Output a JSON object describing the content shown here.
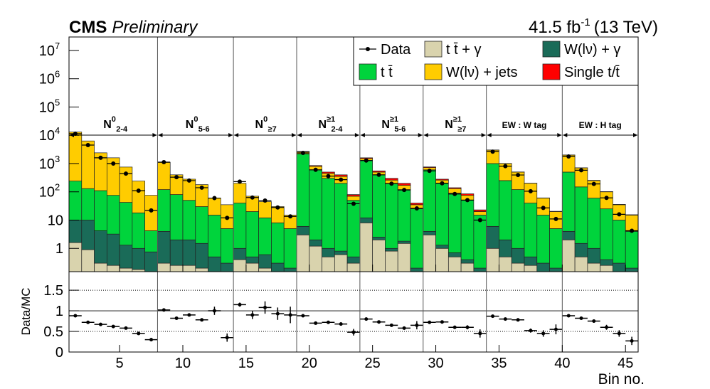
{
  "chart_data": {
    "type": "stacked-histogram",
    "experiment": "CMS",
    "status": "Preliminary",
    "lumi": "41.5 fb",
    "lumi_exponent": "-1",
    "energy": "(13 TeV)",
    "xlabel": "Bin no.",
    "bins": [
      1,
      2,
      3,
      4,
      5,
      6,
      7,
      8,
      9,
      10,
      11,
      12,
      13,
      14,
      15,
      16,
      17,
      18,
      19,
      20,
      21,
      22,
      23,
      24,
      25,
      26,
      27,
      28,
      29,
      30,
      31,
      32,
      33,
      34,
      35,
      36,
      37,
      38,
      39,
      40,
      41,
      42,
      43,
      44,
      45,
      46
    ],
    "xlim": [
      1,
      46
    ],
    "xticks": [
      5,
      10,
      15,
      20,
      25,
      30,
      35,
      40,
      45
    ],
    "log_y": true,
    "ylim": [
      0.15,
      30000000
    ],
    "yticks": [
      1,
      10,
      {
        "value": 100,
        "label": "10",
        "exponent": "2"
      },
      {
        "value": 1000,
        "label": "10",
        "exponent": "3"
      },
      {
        "value": 10000,
        "label": "10",
        "exponent": "4"
      },
      {
        "value": 100000,
        "label": "10",
        "exponent": "5"
      },
      {
        "value": 1000000,
        "label": "10",
        "exponent": "6"
      },
      {
        "value": 10000000,
        "label": "10",
        "exponent": "7"
      }
    ],
    "separators": [
      8,
      14,
      19,
      24,
      29,
      34,
      40
    ],
    "regions": [
      {
        "label": "N",
        "sup": "0",
        "sub": "2-4",
        "xrange": [
          1,
          8
        ]
      },
      {
        "label": "N",
        "sup": "0",
        "sub": "5-6",
        "xrange": [
          8,
          14
        ]
      },
      {
        "label": "N",
        "sup": "0",
        "sub": "≥7",
        "xrange": [
          14,
          19
        ]
      },
      {
        "label": "N",
        "sup": "≥1",
        "sub": "2-4",
        "xrange": [
          19,
          24
        ]
      },
      {
        "label": "N",
        "sup": "≥1",
        "sub": "5-6",
        "xrange": [
          24,
          29
        ]
      },
      {
        "label": "N",
        "sup": "≥1",
        "sub": "≥7",
        "xrange": [
          29,
          34
        ]
      },
      {
        "label": "EW : W tag",
        "xrange": [
          34,
          40
        ]
      },
      {
        "label": "EW : H tag",
        "xrange": [
          40,
          46
        ]
      }
    ],
    "data": {
      "name": "Data",
      "color": "#000000",
      "values": [
        11400,
        4500,
        1600,
        1000,
        440,
        110,
        22,
        1120,
        330,
        250,
        140,
        60,
        12,
        230,
        63,
        49,
        28,
        13.5,
        2380,
        600,
        360,
        270,
        38,
        1280,
        400,
        195,
        116,
        26,
        550,
        200,
        84,
        51,
        10,
        2640,
        810,
        394,
        105,
        27,
        11,
        1780,
        580,
        190,
        61,
        16,
        4.2
      ]
    },
    "series": [
      {
        "name": "t t̄ + γ",
        "color": "#d9d3ad",
        "values": [
          1.6,
          0.9,
          0.3,
          0.25,
          0.2,
          0.18,
          0,
          0.3,
          0.25,
          0.25,
          0.2,
          0,
          0,
          0.4,
          0.3,
          0.2,
          0,
          0,
          3,
          1.2,
          0.5,
          0.6,
          0.3,
          8,
          2,
          0.8,
          1.5,
          0,
          3,
          1,
          0.5,
          0.3,
          0,
          1,
          0.5,
          0.3,
          0.25,
          0,
          0,
          2,
          0.5,
          0.3,
          0.25,
          0,
          0
        ]
      },
      {
        "name": "W(lν) + γ",
        "color": "#1a6b58",
        "values": [
          8.4,
          9.1,
          3.9,
          2.95,
          1.1,
          0.82,
          0.75,
          3.7,
          1.75,
          1.75,
          1.3,
          0.5,
          0.3,
          0.6,
          0.2,
          0.4,
          0.3,
          0.2,
          3,
          0.8,
          0.5,
          0.2,
          0.2,
          4,
          0.5,
          0.2,
          0.3,
          0.2,
          1,
          0.3,
          0.2,
          0.1,
          0.2,
          5,
          1.5,
          0.7,
          0.25,
          0.3,
          0.2,
          2,
          1,
          0.7,
          0.15,
          0.3,
          0.2
        ]
      },
      {
        "name": "t t̄",
        "color": "#00d43c",
        "values": [
          230,
          120,
          106,
          72,
          41,
          17,
          3.45,
          116,
          78,
          48,
          28.5,
          14.5,
          4.7,
          39,
          19.5,
          11.4,
          7.7,
          4.8,
          2194,
          598,
          299,
          199,
          49.5,
          1288,
          397,
          199,
          118,
          24.8,
          596,
          199,
          89,
          49.6,
          14.8,
          994,
          248,
          119,
          39.5,
          14.7,
          4.8,
          496,
          148,
          59,
          24.6,
          9.7,
          3.8
        ]
      },
      {
        "name": "W(lν) + jets",
        "color": "#ffcc00",
        "values": [
          12760,
          6170,
          2290,
          1525,
          710,
          222,
          71,
          980,
          320,
          230,
          150,
          45,
          30,
          160,
          50,
          33,
          22,
          10,
          400,
          200,
          150,
          150,
          20,
          200,
          100,
          60,
          50,
          10,
          120,
          60,
          40,
          25,
          5,
          2000,
          750,
          380,
          160,
          45,
          15,
          1500,
          550,
          190,
          75,
          25,
          11
        ]
      },
      {
        "name": "Single t/t̄",
        "color": "#ff0000",
        "values": [
          0,
          0,
          0,
          0,
          0,
          0,
          0,
          0,
          0,
          0,
          0,
          0,
          0,
          0,
          0,
          0,
          0,
          0,
          100,
          50,
          50,
          50,
          10,
          100,
          50,
          40,
          30,
          5,
          40,
          20,
          10,
          10,
          3,
          30,
          10,
          5,
          2,
          1,
          0.5,
          20,
          10,
          5,
          2,
          1,
          0.5
        ]
      }
    ],
    "ratio": {
      "ylabel": "Data/MC",
      "ylim": [
        0,
        1.95
      ],
      "yticks": [
        0,
        0.5,
        1,
        1.5
      ],
      "reference": 1,
      "values": [
        0.88,
        0.72,
        0.67,
        0.62,
        0.58,
        0.45,
        0.3,
        1.02,
        0.82,
        0.9,
        0.78,
        1.0,
        0.35,
        1.15,
        0.9,
        1.08,
        0.93,
        0.9,
        0.88,
        0.7,
        0.72,
        0.68,
        0.48,
        0.8,
        0.73,
        0.65,
        0.58,
        0.65,
        0.72,
        0.73,
        0.6,
        0.6,
        0.45,
        0.87,
        0.8,
        0.78,
        0.52,
        0.45,
        0.55,
        0.88,
        0.82,
        0.75,
        0.6,
        0.45,
        0.27
      ],
      "errors": [
        0.01,
        0.01,
        0.01,
        0.01,
        0.01,
        0.03,
        0.04,
        0.02,
        0.02,
        0.03,
        0.03,
        0.1,
        0.1,
        0.05,
        0.1,
        0.15,
        0.15,
        0.2,
        0.02,
        0.03,
        0.03,
        0.04,
        0.08,
        0.02,
        0.02,
        0.03,
        0.04,
        0.1,
        0.02,
        0.03,
        0.04,
        0.05,
        0.1,
        0.02,
        0.02,
        0.03,
        0.05,
        0.08,
        0.12,
        0.02,
        0.03,
        0.04,
        0.06,
        0.08,
        0.1
      ]
    }
  }
}
